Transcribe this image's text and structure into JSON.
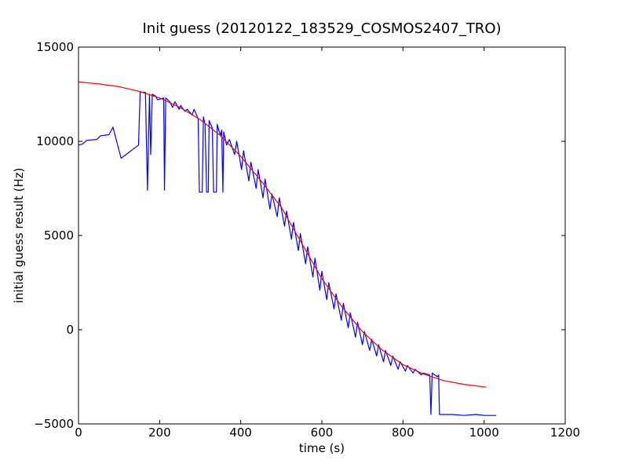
{
  "chart_data": {
    "type": "line",
    "title": "Init guess (20120122_183529_COSMOS2407_TRO)",
    "x_label": "time (s)",
    "y_label": "initial guess result (Hz)",
    "xlim": [
      0,
      1200
    ],
    "ylim": [
      -5000,
      15000
    ],
    "xticks": [
      0,
      200,
      400,
      600,
      800,
      1000,
      1200
    ],
    "yticks": [
      {
        "value": -5000,
        "label": "−5000"
      },
      0,
      5000,
      10000,
      15000
    ],
    "grid": false,
    "series": [
      {
        "color": "#0000ff",
        "x": [
          0,
          10,
          20,
          45,
          55,
          75,
          85,
          105,
          148,
          152,
          165,
          170,
          175,
          178,
          182,
          190,
          195,
          210,
          212,
          215,
          225,
          232,
          238,
          248,
          252,
          262,
          268,
          280,
          285,
          295,
          298,
          305,
          308,
          312,
          316,
          320,
          322,
          330,
          333,
          340,
          342,
          350,
          353,
          356,
          358,
          365,
          372,
          385,
          390,
          402,
          407,
          420,
          425,
          438,
          443,
          455,
          460,
          472,
          477,
          490,
          495,
          508,
          513,
          525,
          530,
          542,
          547,
          560,
          565,
          578,
          583,
          595,
          600,
          612,
          617,
          630,
          635,
          648,
          653,
          665,
          670,
          683,
          688,
          700,
          705,
          718,
          723,
          735,
          740,
          752,
          757,
          770,
          775,
          788,
          793,
          806,
          811,
          825,
          830,
          845,
          850,
          866,
          869,
          872,
          885,
          888,
          890,
          920,
          950,
          980,
          1000,
          1030
        ],
        "values": [
          9800,
          9850,
          10050,
          10100,
          10300,
          10350,
          10750,
          9100,
          9800,
          12600,
          12600,
          7400,
          12500,
          9300,
          12500,
          12400,
          12200,
          12300,
          7400,
          12300,
          12100,
          11800,
          12100,
          11700,
          11900,
          11600,
          11700,
          11400,
          11700,
          11200,
          7300,
          7300,
          11300,
          10900,
          7300,
          7300,
          11100,
          10700,
          7300,
          7300,
          10900,
          10300,
          10600,
          7300,
          10500,
          9800,
          10100,
          9300,
          10000,
          8500,
          9500,
          7900,
          8900,
          7500,
          8500,
          7000,
          8000,
          6400,
          7200,
          6000,
          7000,
          5500,
          6300,
          4800,
          5700,
          4200,
          5100,
          3500,
          4400,
          2800,
          3800,
          2100,
          3100,
          1600,
          2500,
          1100,
          1900,
          500,
          1400,
          100,
          900,
          -400,
          400,
          -800,
          -100,
          -1100,
          -500,
          -1400,
          -800,
          -1700,
          -1100,
          -1900,
          -1400,
          -2100,
          -1700,
          -2200,
          -1900,
          -2300,
          -2100,
          -2400,
          -2300,
          -2400,
          -4500,
          -2300,
          -2500,
          -2400,
          -4500,
          -4500,
          -4550,
          -4500,
          -4550,
          -4550
        ]
      },
      {
        "color": "#ff0000",
        "x": [
          0,
          50,
          100,
          150,
          200,
          250,
          300,
          350,
          400,
          450,
          500,
          550,
          600,
          650,
          700,
          750,
          800,
          850,
          900,
          950,
          1005
        ],
        "values": [
          13150,
          13050,
          12900,
          12650,
          12300,
          11800,
          11150,
          10300,
          9200,
          7900,
          6500,
          4600,
          2700,
          1200,
          -100,
          -1100,
          -1850,
          -2350,
          -2700,
          -2900,
          -3050
        ]
      }
    ]
  }
}
